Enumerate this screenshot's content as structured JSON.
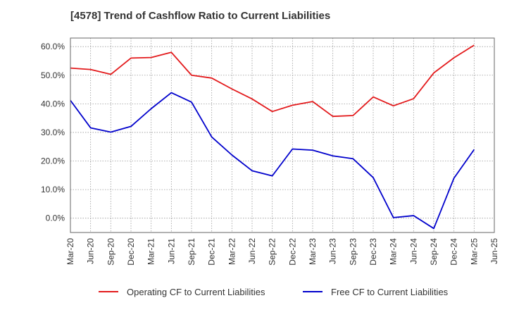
{
  "chart_data": {
    "type": "line",
    "title": "[4578]  Trend of Cashflow Ratio to Current Liabilities",
    "xlabel": "",
    "ylabel": "",
    "x": [
      "Mar-20",
      "Jun-20",
      "Sep-20",
      "Dec-20",
      "Mar-21",
      "Jun-21",
      "Sep-21",
      "Dec-21",
      "Mar-22",
      "Jun-22",
      "Sep-22",
      "Dec-22",
      "Mar-23",
      "Jun-23",
      "Sep-23",
      "Dec-23",
      "Mar-24",
      "Jun-24",
      "Sep-24",
      "Dec-24",
      "Mar-25",
      "Jun-25"
    ],
    "ylim": [
      -5,
      63
    ],
    "yticks": [
      0,
      10,
      20,
      30,
      40,
      50,
      60
    ],
    "ytick_labels": [
      "0.0%",
      "10.0%",
      "20.0%",
      "30.0%",
      "40.0%",
      "50.0%",
      "60.0%"
    ],
    "grid": true,
    "legend": "bottom",
    "series": [
      {
        "name": "Operating CF to Current Liabilities",
        "color": "#e31a1c",
        "values": [
          52.5,
          52.0,
          50.3,
          56.0,
          56.2,
          58.0,
          50.0,
          49.0,
          45.2,
          41.7,
          37.3,
          39.5,
          40.8,
          35.6,
          35.9,
          42.4,
          39.3,
          41.8,
          50.8,
          56.1,
          60.5,
          null
        ]
      },
      {
        "name": "Free CF to Current Liabilities",
        "color": "#0000cc",
        "values": [
          41.2,
          31.6,
          30.1,
          32.1,
          38.3,
          43.9,
          40.6,
          28.4,
          22.1,
          16.6,
          14.8,
          24.2,
          23.8,
          21.8,
          20.8,
          14.2,
          0.2,
          0.9,
          -3.6,
          14.0,
          24.0,
          null
        ]
      }
    ]
  }
}
